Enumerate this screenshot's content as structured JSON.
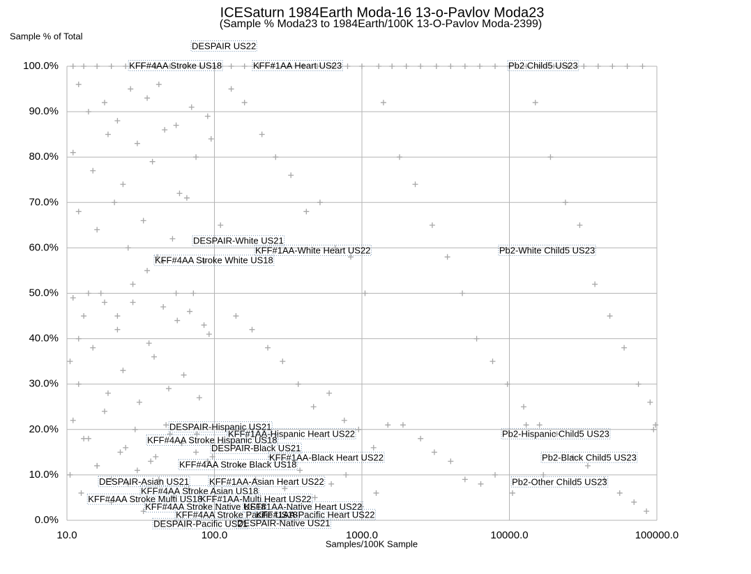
{
  "chart_data": {
    "type": "scatter",
    "title": "ICESaturn 1984Earth Moda-16 13-o-Pavlov Moda23",
    "subtitle": "(Sample % Moda23 to 1984Earth/100K 13-O-Pavlov Moda-2399)",
    "y_label": "Sample % of Total",
    "x_label": "Samples/100K Sample",
    "x_scale": "log",
    "grid": true,
    "color": "#a6a6a6",
    "xlim": [
      10,
      100000
    ],
    "xticks": [
      {
        "value": 10,
        "label": "10.0"
      },
      {
        "value": 100,
        "label": "100.0"
      },
      {
        "value": 1000,
        "label": "1000.0"
      },
      {
        "value": 10000,
        "label": "10000.0"
      },
      {
        "value": 100000,
        "label": "100000.0"
      }
    ],
    "ylim": [
      0,
      100
    ],
    "yticks": [
      {
        "value": 0,
        "label": "0.0%"
      },
      {
        "value": 10,
        "label": "10.0%"
      },
      {
        "value": 20,
        "label": "20.0%"
      },
      {
        "value": 30,
        "label": "30.0%"
      },
      {
        "value": 40,
        "label": "40.0%"
      },
      {
        "value": 50,
        "label": "50.0%"
      },
      {
        "value": 60,
        "label": "60.0%"
      },
      {
        "value": 70,
        "label": "70.0%"
      },
      {
        "value": 80,
        "label": "80.0%"
      },
      {
        "value": 90,
        "label": "90.0%"
      },
      {
        "value": 100,
        "label": "100.0%"
      }
    ],
    "x": [
      11,
      13,
      16,
      20,
      25,
      32,
      40,
      50,
      63,
      80,
      100,
      130,
      160,
      200,
      250,
      320,
      400,
      500,
      630,
      800,
      1000,
      1300,
      1600,
      2000,
      2500,
      3200,
      4000,
      5000,
      6300,
      8000,
      10000,
      13000,
      16000,
      20000,
      25000,
      32000,
      40000,
      50000,
      63000,
      80000,
      12,
      14,
      18,
      22,
      27,
      35,
      42,
      55,
      70,
      90,
      11,
      15,
      19,
      24,
      30,
      38,
      46,
      58,
      75,
      95,
      12,
      16,
      21,
      26,
      33,
      41,
      52,
      65,
      85,
      110,
      11,
      13,
      17,
      22,
      28,
      36,
      45,
      56,
      72,
      92,
      10.5,
      12,
      15,
      19,
      24,
      31,
      39,
      49,
      62,
      79,
      11,
      14,
      18,
      23,
      29,
      37,
      47,
      60,
      76,
      97,
      10.5,
      12.5,
      16,
      20,
      26,
      33,
      42,
      53,
      67,
      85,
      130,
      160,
      210,
      260,
      330,
      420,
      520,
      660,
      840,
      1050,
      140,
      180,
      230,
      290,
      370,
      470,
      600,
      760,
      950,
      1200,
      150,
      190,
      240,
      300,
      380,
      480,
      620,
      780,
      990,
      1250,
      1400,
      1800,
      2300,
      3000,
      3800,
      4800,
      6000,
      7700,
      9700,
      12500,
      1500,
      1900,
      2500,
      3100,
      4000,
      5000,
      6400,
      8000,
      10500,
      13000,
      15000,
      19000,
      24000,
      30000,
      38000,
      48000,
      60000,
      75000,
      90000,
      98000,
      16000,
      21000,
      27000,
      34000,
      44000,
      56000,
      70000,
      85000,
      95000,
      17000,
      45,
      55,
      68,
      85,
      35,
      28,
      22,
      18,
      14,
      12,
      50,
      60,
      75,
      90,
      40,
      30,
      25,
      20,
      16,
      13
    ],
    "values": [
      100,
      100,
      100,
      100,
      100,
      100,
      100,
      100,
      100,
      100,
      100,
      100,
      100,
      100,
      100,
      100,
      100,
      100,
      100,
      100,
      100,
      100,
      100,
      100,
      100,
      100,
      100,
      100,
      100,
      100,
      100,
      100,
      100,
      100,
      100,
      100,
      100,
      100,
      100,
      100,
      96,
      90,
      92,
      88,
      95,
      93,
      96,
      87,
      91,
      89,
      81,
      77,
      85,
      74,
      83,
      79,
      86,
      72,
      80,
      84,
      68,
      64,
      70,
      60,
      66,
      58,
      62,
      71,
      57,
      65,
      49,
      45,
      50,
      42,
      48,
      39,
      47,
      44,
      50,
      41,
      35,
      30,
      38,
      28,
      33,
      26,
      36,
      29,
      32,
      27,
      22,
      18,
      24,
      15,
      20,
      13,
      21,
      17,
      19,
      14,
      10,
      6,
      12,
      4,
      8,
      2,
      9,
      5,
      7,
      3,
      95,
      92,
      85,
      80,
      76,
      68,
      70,
      60,
      58,
      50,
      45,
      42,
      38,
      35,
      30,
      25,
      28,
      22,
      20,
      16,
      12,
      9,
      14,
      7,
      11,
      5,
      8,
      10,
      3,
      6,
      92,
      80,
      74,
      65,
      58,
      50,
      40,
      35,
      30,
      25,
      21,
      21,
      18,
      15,
      13,
      9,
      8,
      10,
      6,
      21,
      92,
      80,
      70,
      65,
      52,
      45,
      38,
      30,
      26,
      21,
      21,
      19,
      14,
      12,
      9,
      6,
      4,
      2,
      20,
      10,
      57,
      50,
      46,
      43,
      55,
      52,
      45,
      48,
      50,
      40,
      19,
      17,
      15,
      13,
      14,
      11,
      16,
      9,
      12,
      18
    ],
    "annotations": [
      {
        "text": "DESPAIR US22",
        "x": 70.2,
        "y": 104.3
      },
      {
        "text": "KFF#4AA Stroke US18",
        "x": 26.4,
        "y": 100
      },
      {
        "text": "KFF#1AA Heart US23",
        "x": 183,
        "y": 100
      },
      {
        "text": "Pb2 Child5 US23",
        "x": 9840,
        "y": 100
      },
      {
        "text": "DESPAIR-White US21",
        "x": 71.7,
        "y": 61.4
      },
      {
        "text": "KFF#1AA-White Heart US22",
        "x": 189,
        "y": 59.3
      },
      {
        "text": "Pb2-White Child5 US23",
        "x": 8530,
        "y": 59.3
      },
      {
        "text": "KFF#4AA Stroke White US18",
        "x": 39.4,
        "y": 57.1
      },
      {
        "text": "DESPAIR-Hispanic US21",
        "x": 49.5,
        "y": 20.4
      },
      {
        "text": "KFF#1AA-Hispanic Heart US22",
        "x": 123.6,
        "y": 18.9
      },
      {
        "text": "Pb2-Hispanic Child5 US23",
        "x": 8920,
        "y": 18.9
      },
      {
        "text": "KFF#4AA Stroke Hispanic US18",
        "x": 35.0,
        "y": 17.5
      },
      {
        "text": "DESPAIR-Black US21",
        "x": 95.2,
        "y": 15.7
      },
      {
        "text": "KFF#1AA-Black Heart US22",
        "x": 235,
        "y": 13.7
      },
      {
        "text": "Pb2-Black Child5 US23",
        "x": 16600,
        "y": 13.7
      },
      {
        "text": "KFF#4AA Stroke Black US18",
        "x": 57.7,
        "y": 12.1
      },
      {
        "text": "DESPAIR-Asian US21",
        "x": 16.5,
        "y": 8.4
      },
      {
        "text": "KFF#1AA-Asian Heart US22",
        "x": 92.2,
        "y": 8.4
      },
      {
        "text": "Pb2-Other Child5 US23",
        "x": 10400,
        "y": 8.3
      },
      {
        "text": "KFF#4AA Stroke Asian US18",
        "x": 31.7,
        "y": 6.3
      },
      {
        "text": "KFF#4AA Stroke Multi US18",
        "x": 13.9,
        "y": 4.5
      },
      {
        "text": "KFF#1AA-Multi Heart US22",
        "x": 80,
        "y": 4.5
      },
      {
        "text": "KFF#4AA Stroke Native US18",
        "x": 33.9,
        "y": 2.8
      },
      {
        "text": "KFF#1AA-Native Heart US22",
        "x": 159,
        "y": 2.8
      },
      {
        "text": "KFF#4AA Stroke Pacific US18",
        "x": 54.7,
        "y": 1.1
      },
      {
        "text": "KFF#1AA-Pacific Heart US22",
        "x": 191,
        "y": 1.1
      },
      {
        "text": "DESPAIR-Pacific US21",
        "x": 38.6,
        "y": -0.9
      },
      {
        "text": "DESPAIR-Native US21",
        "x": 142.5,
        "y": -0.8
      }
    ]
  }
}
